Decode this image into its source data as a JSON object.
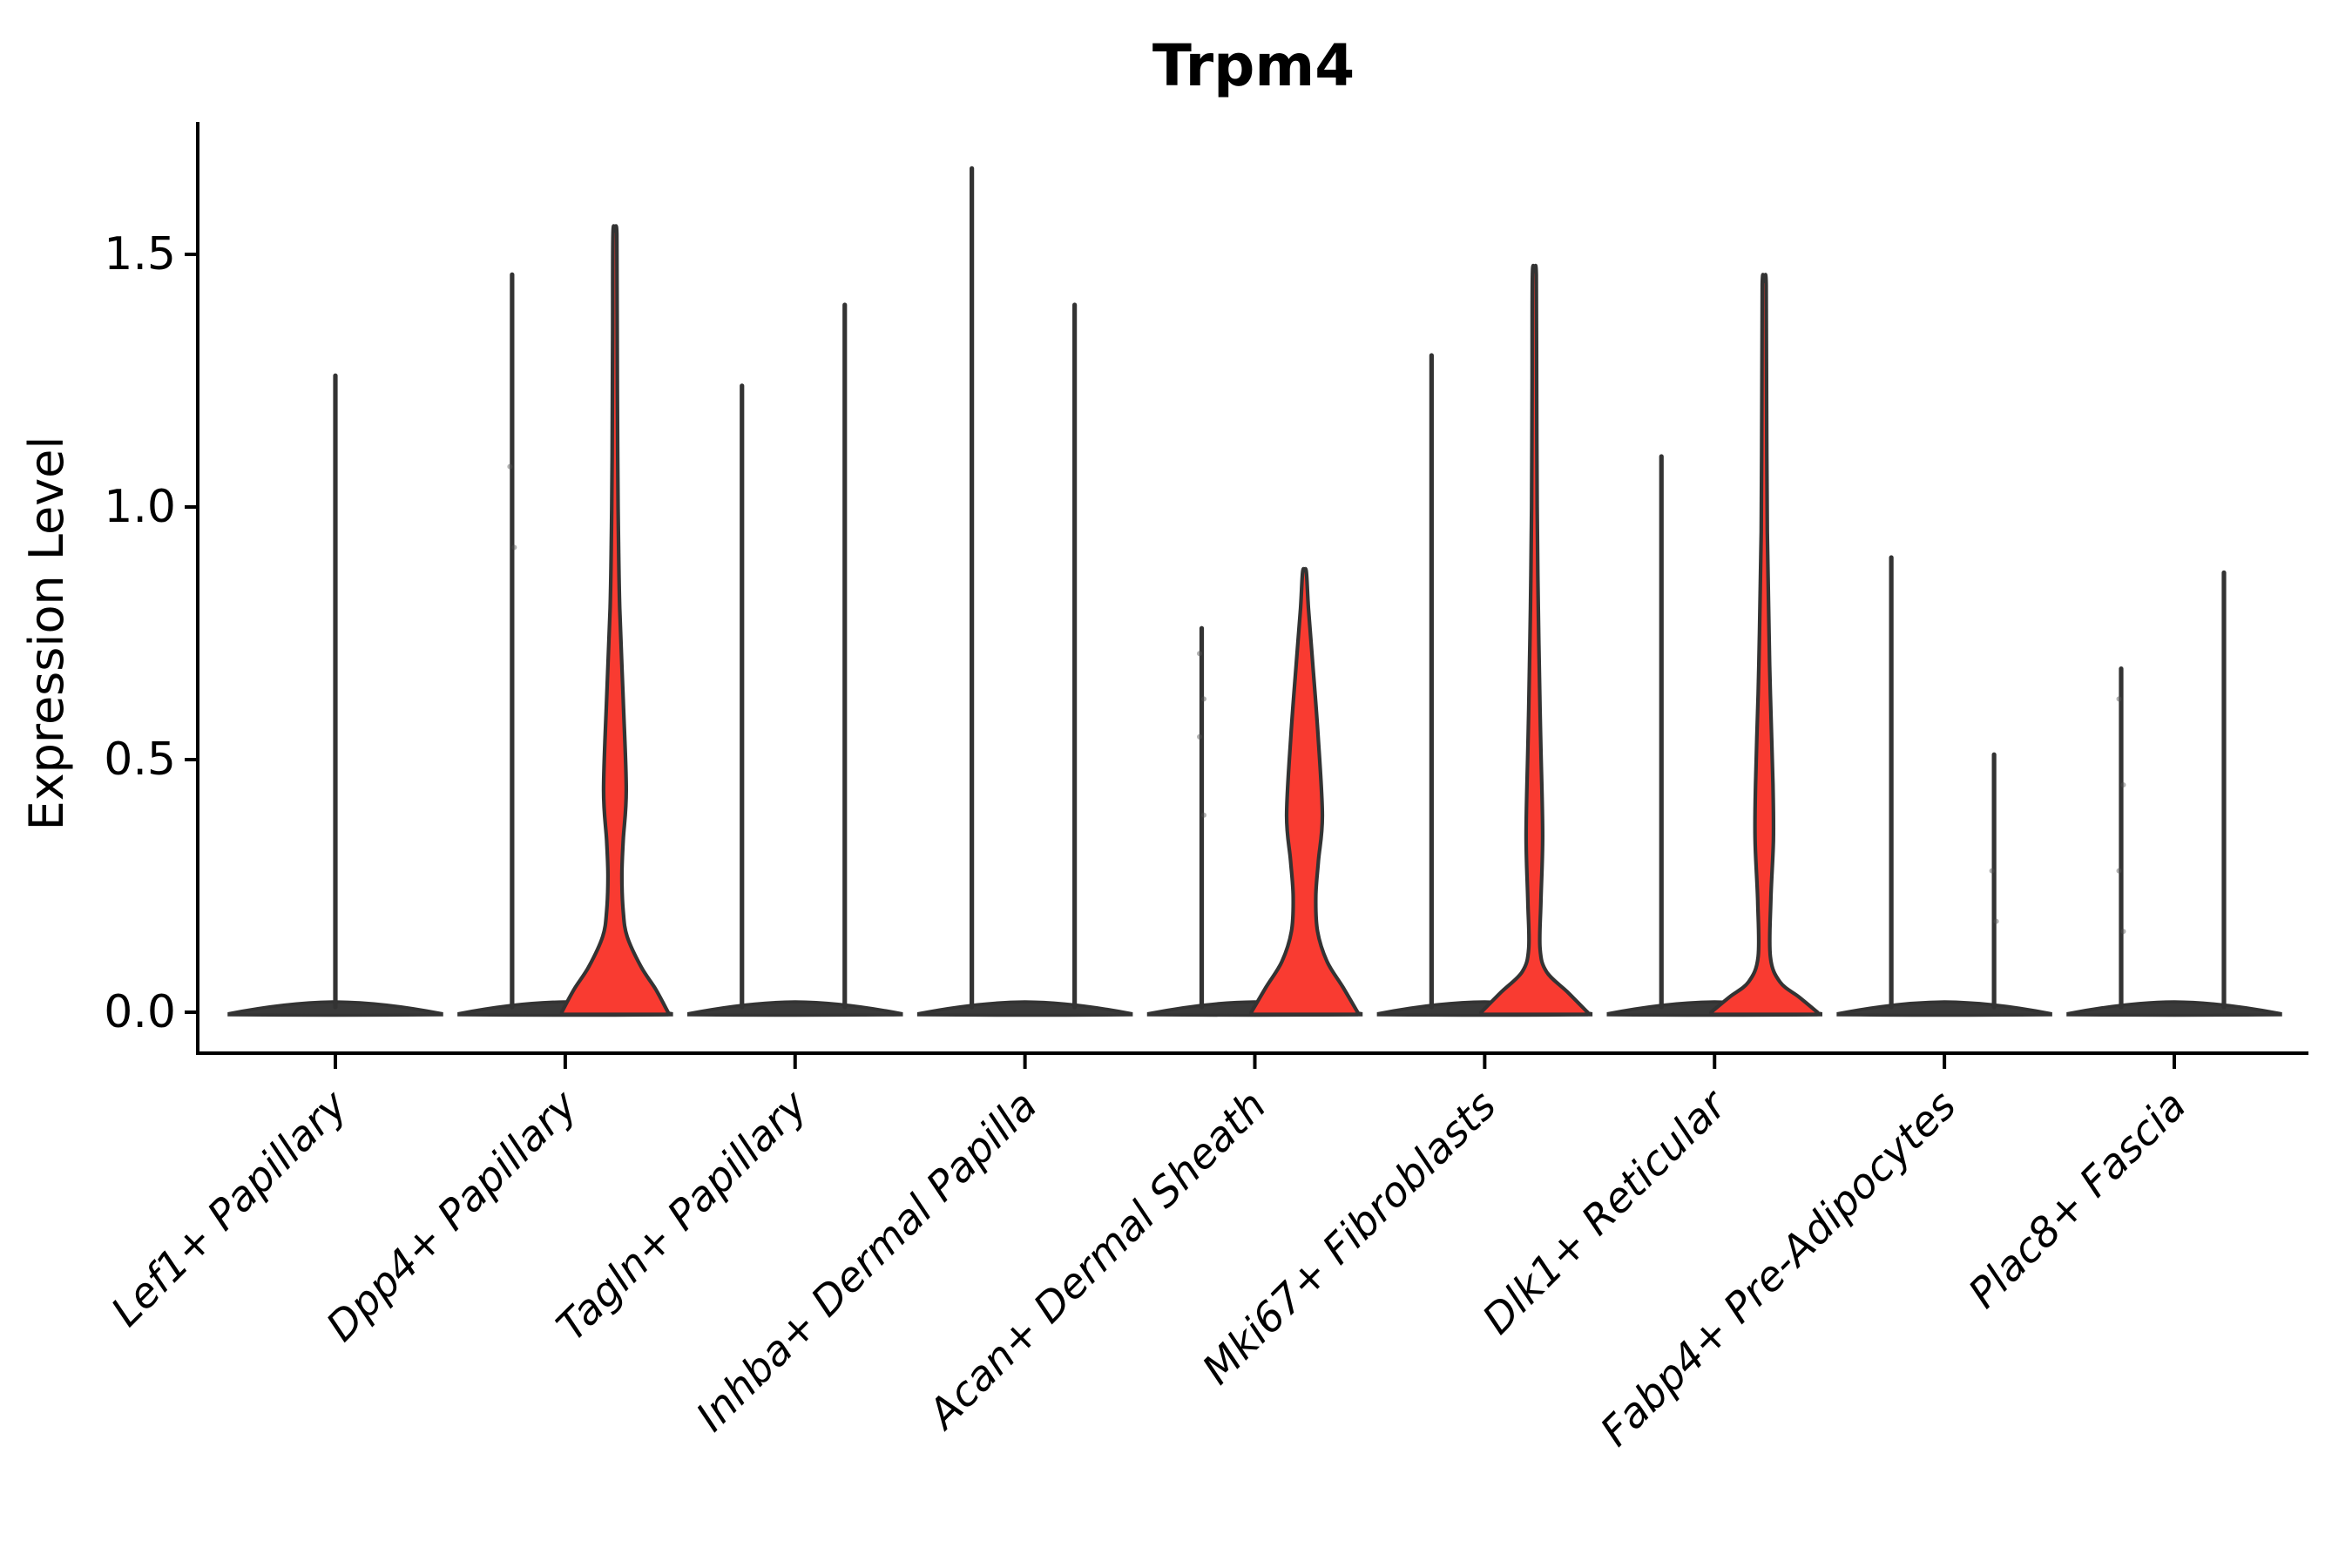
{
  "title": "Trpm4",
  "colors": {
    "violin_fill": "#F93B31",
    "violin_outline": "#333333",
    "baseline_bar": "#3A3A3A",
    "axis": "#000000"
  },
  "chart_data": {
    "type": "violin",
    "title": "Trpm4",
    "ylabel": "Expression Level",
    "xlabel": "",
    "ylim": [
      -0.08,
      1.76
    ],
    "yticks": [
      0.0,
      0.5,
      1.0,
      1.5
    ],
    "ytick_labels": [
      "0.0",
      "0.5",
      "1.0",
      "1.5"
    ],
    "grid": false,
    "legend": "none",
    "categories": [
      "Lef1+ Papillary",
      "Dpp4+ Papillary",
      "Tagln+ Papillary",
      "Inhba+ Dermal Papilla",
      "Acan+ Dermal Sheath",
      "Mki67+ Fibroblasts",
      "Dlk1+ Reticular",
      "Fabp4+ Pre-Adipocytes",
      "Plac8+ Fascia"
    ],
    "violins": [
      {
        "category": "Lef1+ Papillary",
        "components": [
          {
            "side": "center",
            "shape": "spike",
            "max_value": 1.26
          }
        ],
        "points": []
      },
      {
        "category": "Dpp4+ Papillary",
        "components": [
          {
            "side": "left",
            "shape": "spike",
            "max_value": 1.46
          },
          {
            "side": "right",
            "shape": "body",
            "max_value": 1.54,
            "profile": [
              [
                1.54,
                2.2
              ],
              [
                1.35,
                2.6
              ],
              [
                1.1,
                3.2
              ],
              [
                0.95,
                4.0
              ],
              [
                0.8,
                5.5
              ],
              [
                0.62,
                9.5
              ],
              [
                0.44,
                13.0
              ],
              [
                0.34,
                9.5
              ],
              [
                0.27,
                8.0
              ],
              [
                0.2,
                9.5
              ],
              [
                0.15,
                14.0
              ],
              [
                0.09,
                30.0
              ],
              [
                0.045,
                47.0
              ],
              [
                0.0,
                61.0
              ]
            ]
          }
        ],
        "points": [
          {
            "side": "left",
            "v": 1.08
          },
          {
            "side": "left",
            "v": 0.92
          }
        ]
      },
      {
        "category": "Tagln+ Papillary",
        "components": [
          {
            "side": "left",
            "shape": "spike",
            "max_value": 1.24
          },
          {
            "side": "right",
            "shape": "spike",
            "max_value": 1.4
          }
        ],
        "points": []
      },
      {
        "category": "Inhba+ Dermal Papilla",
        "components": [
          {
            "side": "left",
            "shape": "spike",
            "max_value": 1.67
          },
          {
            "side": "right",
            "shape": "spike",
            "max_value": 1.4
          }
        ],
        "points": []
      },
      {
        "category": "Acan+ Dermal Sheath",
        "components": [
          {
            "side": "left",
            "shape": "spike",
            "max_value": 0.76
          },
          {
            "side": "right",
            "shape": "body",
            "max_value": 0.87,
            "profile": [
              [
                0.87,
                2.2
              ],
              [
                0.8,
                4.5
              ],
              [
                0.7,
                9.0
              ],
              [
                0.55,
                15.5
              ],
              [
                0.39,
                20.5
              ],
              [
                0.3,
                16.0
              ],
              [
                0.23,
                13.0
              ],
              [
                0.16,
                15.0
              ],
              [
                0.1,
                26.0
              ],
              [
                0.05,
                44.0
              ],
              [
                0.0,
                61.0
              ]
            ]
          }
        ],
        "points": [
          {
            "side": "left",
            "v": 0.71
          },
          {
            "side": "left",
            "v": 0.62
          },
          {
            "side": "left",
            "v": 0.545
          },
          {
            "side": "left",
            "v": 0.39
          }
        ]
      },
      {
        "category": "Mki67+ Fibroblasts",
        "components": [
          {
            "side": "left",
            "shape": "spike",
            "max_value": 1.3
          },
          {
            "side": "right",
            "shape": "body",
            "max_value": 1.46,
            "profile": [
              [
                1.46,
                2.2
              ],
              [
                1.25,
                2.6
              ],
              [
                1.0,
                3.2
              ],
              [
                0.8,
                4.5
              ],
              [
                0.6,
                6.5
              ],
              [
                0.52,
                7.5
              ],
              [
                0.35,
                9.5
              ],
              [
                0.22,
                7.5
              ],
              [
                0.126,
                6.5
              ],
              [
                0.08,
                14.0
              ],
              [
                0.04,
                38.0
              ],
              [
                0.0,
                61.0
              ]
            ]
          }
        ],
        "points": []
      },
      {
        "category": "Dlk1+ Reticular",
        "components": [
          {
            "side": "left",
            "shape": "spike",
            "max_value": 1.1
          },
          {
            "side": "right",
            "shape": "body",
            "max_value": 1.44,
            "profile": [
              [
                1.44,
                2.2
              ],
              [
                1.2,
                2.7
              ],
              [
                0.95,
                3.5
              ],
              [
                0.75,
                5.5
              ],
              [
                0.63,
                7.0
              ],
              [
                0.45,
                10.0
              ],
              [
                0.34,
                10.5
              ],
              [
                0.22,
                7.5
              ],
              [
                0.11,
                7.0
              ],
              [
                0.06,
                18.0
              ],
              [
                0.03,
                40.0
              ],
              [
                0.0,
                61.0
              ]
            ]
          }
        ],
        "points": []
      },
      {
        "category": "Fabp4+ Pre-Adipocytes",
        "components": [
          {
            "side": "left",
            "shape": "spike",
            "max_value": 0.9
          },
          {
            "side": "right",
            "shape": "spike",
            "max_value": 0.51
          }
        ],
        "points": [
          {
            "side": "right",
            "v": 0.28
          },
          {
            "side": "right",
            "v": 0.18
          }
        ]
      },
      {
        "category": "Plac8+ Fascia",
        "components": [
          {
            "side": "left",
            "shape": "spike",
            "max_value": 0.68
          },
          {
            "side": "right",
            "shape": "spike",
            "max_value": 0.87
          }
        ],
        "points": [
          {
            "side": "left",
            "v": 0.62
          },
          {
            "side": "left",
            "v": 0.45
          },
          {
            "side": "left",
            "v": 0.28
          },
          {
            "side": "left",
            "v": 0.16
          }
        ]
      }
    ]
  }
}
